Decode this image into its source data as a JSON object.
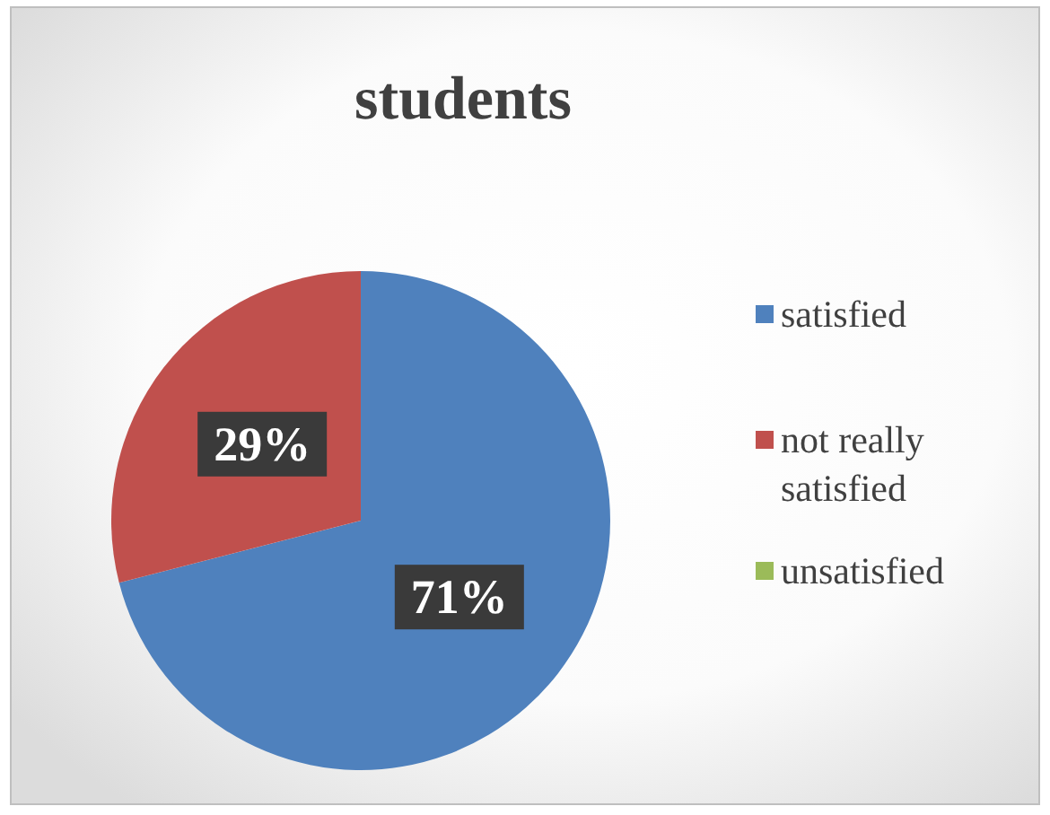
{
  "chart_data": {
    "type": "pie",
    "title": "students",
    "categories": [
      "satisfied",
      "not really satisfied",
      "unsatisfied"
    ],
    "values": [
      71,
      29,
      0
    ],
    "colors": [
      "#4f81bd",
      "#c0504d",
      "#9bbb59"
    ],
    "value_labels": [
      "71%",
      "29%",
      null
    ],
    "legend": "right"
  }
}
